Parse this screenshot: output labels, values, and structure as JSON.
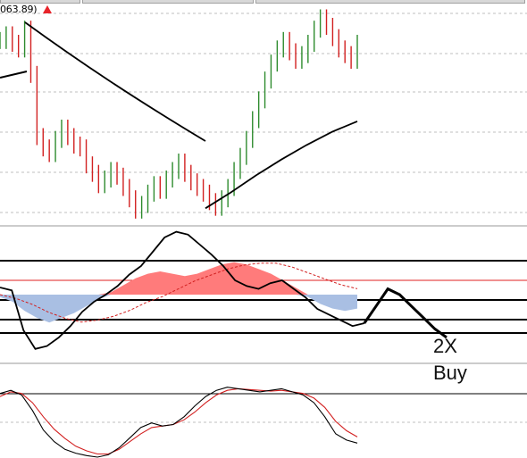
{
  "price_label": "063.89)",
  "chart_data": {
    "type": "line",
    "annotations": [
      "2X",
      "Buy"
    ],
    "colors": {
      "candle_up": "#2e8b2e",
      "candle_down": "#d22020",
      "moving_average": "#000000",
      "histogram_positive": "#ff7b7b",
      "histogram_negative": "#a9bfe3",
      "signal_line": "#d22020",
      "oscillator_main": "#000000",
      "oscillator_signal": "#d22020",
      "grid": "#bfbfbf",
      "arrow": "#e8232a"
    },
    "price_panel": {
      "close": [
        104,
        106,
        103,
        101,
        108,
        92,
        70,
        66,
        64,
        69,
        73,
        70,
        67,
        66,
        60,
        57,
        53,
        55,
        58,
        56,
        52,
        48,
        44,
        46,
        50,
        53,
        51,
        55,
        58,
        61,
        57,
        54,
        52,
        50,
        47,
        45,
        48,
        52,
        58,
        63,
        69,
        76,
        83,
        90,
        96,
        101,
        104,
        100,
        97,
        99,
        103,
        108,
        112,
        109,
        105,
        101,
        99,
        97,
        103
      ],
      "moving_average_left": [
        87,
        89,
        92
      ],
      "moving_average_right": [
        10,
        22,
        35,
        47,
        58,
        68,
        76
      ]
    },
    "macd_panel": {
      "main_line": [
        5,
        3,
        -25,
        -38,
        -36,
        -30,
        -22,
        -12,
        -5,
        0,
        6,
        14,
        20,
        30,
        40,
        44,
        42,
        35,
        28,
        20,
        10,
        6,
        4,
        8,
        10,
        4,
        -2,
        -10,
        -14,
        -18,
        -22,
        -20,
        -8,
        4,
        0,
        -8,
        -16,
        -24,
        -30
      ],
      "signal_line": [
        0,
        -4,
        -10,
        -18,
        -24,
        -28,
        -26,
        -22,
        -16,
        -8,
        -2,
        6,
        14,
        20,
        26,
        30,
        32,
        32,
        28,
        22,
        16,
        10,
        6
      ],
      "histogram": [
        -2,
        -6,
        -14,
        -20,
        -24,
        -20,
        -16,
        -10,
        -4,
        2,
        8,
        14,
        18,
        20,
        18,
        16,
        18,
        22,
        26,
        28,
        26,
        22,
        18,
        12,
        6,
        -2,
        -8,
        -12,
        -14,
        -12
      ]
    },
    "stochastic_panel": {
      "main_line": [
        82,
        86,
        80,
        60,
        35,
        20,
        10,
        5,
        2,
        0,
        3,
        12,
        25,
        38,
        44,
        40,
        42,
        52,
        66,
        78,
        86,
        90,
        88,
        86,
        84,
        86,
        88,
        84,
        80,
        70,
        52,
        30,
        22,
        18
      ],
      "signal_line": [
        78,
        84,
        82,
        70,
        52,
        36,
        24,
        14,
        8,
        4,
        4,
        10,
        20,
        30,
        38,
        40,
        42,
        48,
        58,
        70,
        80,
        86,
        88,
        87,
        86,
        85,
        86,
        84,
        82,
        76,
        64,
        46,
        34,
        26
      ]
    }
  }
}
